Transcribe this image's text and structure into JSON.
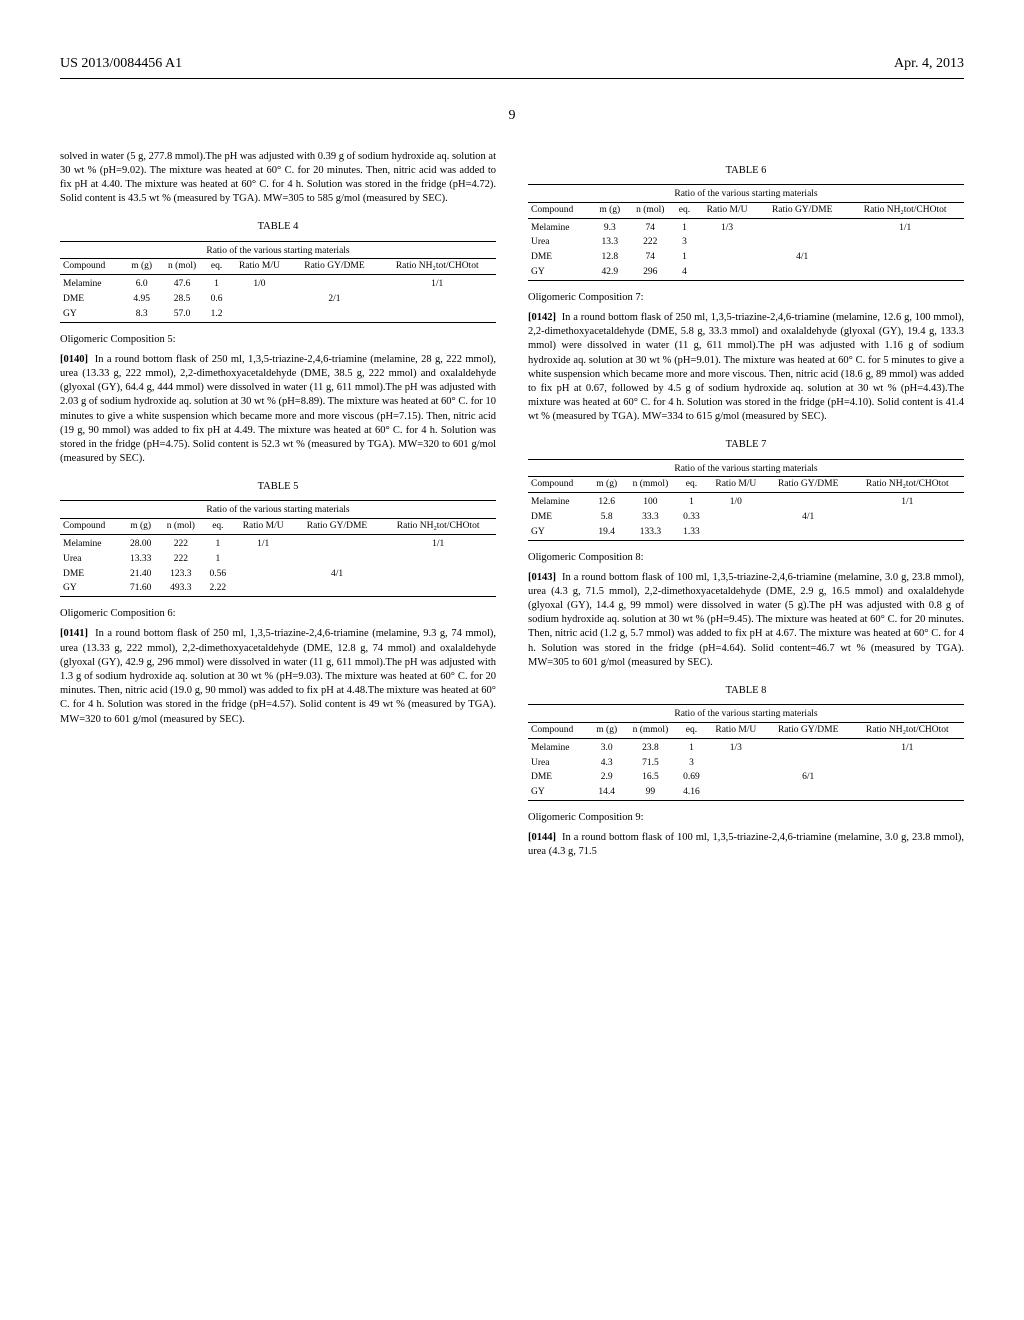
{
  "header": {
    "left": "US 2013/0084456 A1",
    "right": "Apr. 4, 2013"
  },
  "pagenum": "9",
  "left": {
    "intro": "solved in water (5 g, 277.8 mmol).The pH was adjusted with 0.39 g of sodium hydroxide aq. solution at 30 wt % (pH=9.02). The mixture was heated at 60° C. for 20 minutes. Then, nitric acid was added to fix pH at 4.40. The mixture was heated at 60° C. for 4 h. Solution was stored in the fridge (pH=4.72). Solid content is 43.5 wt % (measured by TGA). MW=305 to 585 g/mol (measured by SEC).",
    "table4": {
      "label": "TABLE 4",
      "caption": "Ratio of the various starting materials",
      "headers": [
        "Compound",
        "m (g)",
        "n (mol)",
        "eq.",
        "Ratio M/U",
        "Ratio GY/DME",
        "Ratio NH₂tot/CHOtot"
      ],
      "rows": [
        [
          "Melamine",
          "6.0",
          "47.6",
          "1",
          "1/0",
          "",
          "1/1"
        ],
        [
          "DME",
          "4.95",
          "28.5",
          "0.6",
          "",
          "2/1",
          ""
        ],
        [
          "GY",
          "8.3",
          "57.0",
          "1.2",
          "",
          "",
          ""
        ]
      ]
    },
    "sec5_title": "Oligomeric Composition 5:",
    "sec5_num": "[0140]",
    "sec5_body": "In a round bottom flask of 250 ml, 1,3,5-triazine-2,4,6-triamine (melamine, 28 g, 222 mmol), urea (13.33 g, 222 mmol), 2,2-dimethoxyacetaldehyde (DME, 38.5 g, 222 mmol) and oxalaldehyde (glyoxal (GY), 64.4 g, 444 mmol) were dissolved in water (11 g, 611 mmol).The pH was adjusted with 2.03 g of sodium hydroxide aq. solution at 30 wt % (pH=8.89). The mixture was heated at 60° C. for 10 minutes to give a white suspension which became more and more viscous (pH=7.15). Then, nitric acid (19 g, 90 mmol) was added to fix pH at 4.49. The mixture was heated at 60° C. for 4 h. Solution was stored in the fridge (pH=4.75). Solid content is 52.3 wt % (measured by TGA). MW=320 to 601 g/mol (measured by SEC).",
    "table5": {
      "label": "TABLE 5",
      "caption": "Ratio of the various starting materials",
      "headers": [
        "Compound",
        "m (g)",
        "n (mol)",
        "eq.",
        "Ratio M/U",
        "Ratio GY/DME",
        "Ratio NH₂tot/CHOtot"
      ],
      "rows": [
        [
          "Melamine",
          "28.00",
          "222",
          "1",
          "1/1",
          "",
          "1/1"
        ],
        [
          "Urea",
          "13.33",
          "222",
          "1",
          "",
          "",
          ""
        ],
        [
          "DME",
          "21.40",
          "123.3",
          "0.56",
          "",
          "4/1",
          ""
        ],
        [
          "GY",
          "71.60",
          "493.3",
          "2.22",
          "",
          "",
          ""
        ]
      ]
    },
    "sec6_title": "Oligomeric Composition 6:",
    "sec6_num": "[0141]",
    "sec6_body": "In a round bottom flask of 250 ml, 1,3,5-triazine-2,4,6-triamine (melamine, 9.3 g, 74 mmol), urea (13.33 g, 222 mmol), 2,2-dimethoxyacetaldehyde (DME, 12.8 g, 74 mmol) and oxalaldehyde (glyoxal (GY), 42.9 g, 296 mmol) were dissolved in water (11 g, 611 mmol).The pH was adjusted with 1.3 g of sodium hydroxide aq. solution at 30 wt % (pH=9.03). The mixture was heated at 60° C. for 20 minutes. Then, nitric acid (19.0 g, 90 mmol) was added to fix pH at 4.48.The mixture was heated at 60° C. for 4 h. Solution was stored in the fridge (pH=4.57). Solid content is 49 wt % (measured by TGA). MW=320 to 601 g/mol (measured by SEC)."
  },
  "right": {
    "table6": {
      "label": "TABLE 6",
      "caption": "Ratio of the various starting materials",
      "headers": [
        "Compound",
        "m (g)",
        "n (mol)",
        "eq.",
        "Ratio M/U",
        "Ratio GY/DME",
        "Ratio NH₂tot/CHOtot"
      ],
      "rows": [
        [
          "Melamine",
          "9.3",
          "74",
          "1",
          "1/3",
          "",
          "1/1"
        ],
        [
          "Urea",
          "13.3",
          "222",
          "3",
          "",
          "",
          ""
        ],
        [
          "DME",
          "12.8",
          "74",
          "1",
          "",
          "4/1",
          ""
        ],
        [
          "GY",
          "42.9",
          "296",
          "4",
          "",
          "",
          ""
        ]
      ]
    },
    "sec7_title": "Oligomeric Composition 7:",
    "sec7_num": "[0142]",
    "sec7_body": "In a round bottom flask of 250 ml, 1,3,5-triazine-2,4,6-triamine (melamine, 12.6 g, 100 mmol), 2,2-dimethoxyacetaldehyde (DME, 5.8 g, 33.3 mmol) and oxalaldehyde (glyoxal (GY), 19.4 g, 133.3 mmol) were dissolved in water (11 g, 611 mmol).The pH was adjusted with 1.16 g of sodium hydroxide aq. solution at 30 wt % (pH=9.01). The mixture was heated at 60° C. for 5 minutes to give a white suspension which became more and more viscous. Then, nitric acid (18.6 g, 89 mmol) was added to fix pH at 0.67, followed by 4.5 g of sodium hydroxide aq. solution at 30 wt % (pH=4.43).The mixture was heated at 60° C. for 4 h. Solution was stored in the fridge (pH=4.10). Solid content is 41.4 wt % (measured by TGA). MW=334 to 615 g/mol (measured by SEC).",
    "table7": {
      "label": "TABLE 7",
      "caption": "Ratio of the various starting materials",
      "headers": [
        "Compound",
        "m (g)",
        "n (mmol)",
        "eq.",
        "Ratio M/U",
        "Ratio GY/DME",
        "Ratio NH₂tot/CHOtot"
      ],
      "rows": [
        [
          "Melamine",
          "12.6",
          "100",
          "1",
          "1/0",
          "",
          "1/1"
        ],
        [
          "DME",
          "5.8",
          "33.3",
          "0.33",
          "",
          "4/1",
          ""
        ],
        [
          "GY",
          "19.4",
          "133.3",
          "1.33",
          "",
          "",
          ""
        ]
      ]
    },
    "sec8_title": "Oligomeric Composition 8:",
    "sec8_num": "[0143]",
    "sec8_body": "In a round bottom flask of 100 ml, 1,3,5-triazine-2,4,6-triamine (melamine, 3.0 g, 23.8 mmol), urea (4.3 g, 71.5 mmol), 2,2-dimethoxyacetaldehyde (DME, 2.9 g, 16.5 mmol) and oxalaldehyde (glyoxal (GY), 14.4 g, 99 mmol) were dissolved in water (5 g).The pH was adjusted with 0.8 g of sodium hydroxide aq. solution at 30 wt % (pH=9.45). The mixture was heated at 60° C. for 20 minutes. Then, nitric acid (1.2 g, 5.7 mmol) was added to fix pH at 4.67. The mixture was heated at 60° C. for 4 h. Solution was stored in the fridge (pH=4.64). Solid content=46.7 wt % (measured by TGA). MW=305 to 601 g/mol (measured by SEC).",
    "table8": {
      "label": "TABLE 8",
      "caption": "Ratio of the various starting materials",
      "headers": [
        "Compound",
        "m (g)",
        "n (mmol)",
        "eq.",
        "Ratio M/U",
        "Ratio GY/DME",
        "Ratio NH₂tot/CHOtot"
      ],
      "rows": [
        [
          "Melamine",
          "3.0",
          "23.8",
          "1",
          "1/3",
          "",
          "1/1"
        ],
        [
          "Urea",
          "4.3",
          "71.5",
          "3",
          "",
          "",
          ""
        ],
        [
          "DME",
          "2.9",
          "16.5",
          "0.69",
          "",
          "6/1",
          ""
        ],
        [
          "GY",
          "14.4",
          "99",
          "4.16",
          "",
          "",
          ""
        ]
      ]
    },
    "sec9_title": "Oligomeric Composition 9:",
    "sec9_num": "[0144]",
    "sec9_body": "In a round bottom flask of 100 ml, 1,3,5-triazine-2,4,6-triamine (melamine, 3.0 g, 23.8 mmol), urea (4.3 g, 71.5"
  }
}
